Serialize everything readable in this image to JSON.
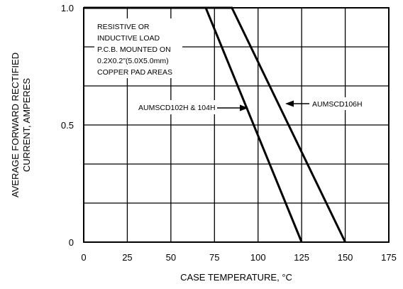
{
  "chart_data": {
    "type": "line",
    "xlabel": "CASE TEMPERATURE, °C",
    "ylabel": [
      "AVERAGE FORWARD RECTIFIED",
      "CURRENT, AMPERES"
    ],
    "xlim": [
      0,
      175
    ],
    "ylim": [
      0,
      1.0
    ],
    "x_ticks": [
      0,
      25,
      50,
      75,
      100,
      125,
      150,
      175
    ],
    "y_ticks": [
      {
        "value": 0,
        "label": "0"
      },
      {
        "value": 0.5,
        "label": "0.5"
      },
      {
        "value": 1.0,
        "label": "1.0"
      }
    ],
    "x_grid": [
      0,
      25,
      50,
      75,
      100,
      125,
      150,
      175
    ],
    "y_grid": [
      0,
      0.1667,
      0.3333,
      0.5,
      0.6667,
      0.8333,
      1.0
    ],
    "grid": true,
    "series": [
      {
        "name": "AUMSCD102H & 104H",
        "x": [
          0,
          70,
          125
        ],
        "y": [
          1.0,
          1.0,
          0
        ]
      },
      {
        "name": "AUMSCD106H",
        "x": [
          0,
          85,
          150
        ],
        "y": [
          1.0,
          1.0,
          0
        ]
      }
    ],
    "annotation": [
      "RESISTIVE OR",
      "INDUCTIVE LOAD",
      "P.C.B. MOUNTED ON",
      "0.2X0.2\"(5.0X5.0mm)",
      "COPPER PAD AREAS"
    ]
  }
}
